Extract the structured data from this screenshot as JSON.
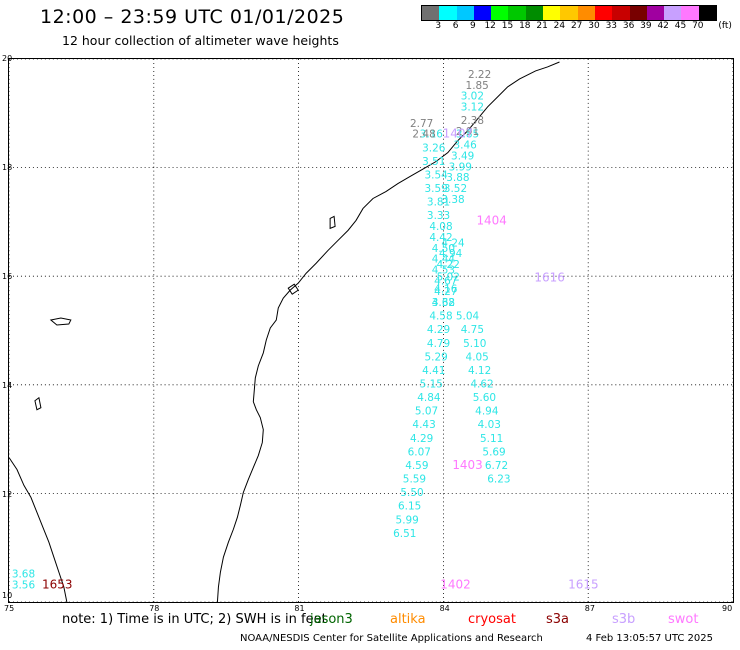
{
  "header": {
    "title": "12:00 – 23:59 UTC 01/01/2025",
    "subtitle": "12 hour collection of altimeter wave heights"
  },
  "legend": {
    "unit": "(ft)",
    "colors": [
      "#707070",
      "#00ffff",
      "#00c8ff",
      "#0000ff",
      "#00ff00",
      "#00c800",
      "#008c00",
      "#ffff00",
      "#ffc800",
      "#ff8c00",
      "#ff0000",
      "#c80000",
      "#780000",
      "#a000a0",
      "#c8a0ff",
      "#ff78ff",
      "#000000"
    ],
    "labels": [
      "3",
      "6",
      "9",
      "12",
      "15",
      "18",
      "21",
      "24",
      "27",
      "30",
      "33",
      "36",
      "39",
      "42",
      "45",
      "70"
    ]
  },
  "axes": {
    "x_ticks": [
      "75",
      "78",
      "81",
      "84",
      "87",
      "90"
    ],
    "y_ticks": [
      "10",
      "12",
      "14",
      "16",
      "18",
      "20"
    ]
  },
  "chart_data": {
    "type": "scatter",
    "x_range": [
      75,
      90
    ],
    "y_range": [
      10,
      20
    ],
    "tracks": [
      {
        "color": "#2ee6e6",
        "points": [
          {
            "x": 84.6,
            "y": 19.25,
            "v": "3.02"
          },
          {
            "x": 84.6,
            "y": 19.05,
            "v": "3.12"
          },
          {
            "x": 84.5,
            "y": 18.55,
            "v": "3.85"
          },
          {
            "x": 84.45,
            "y": 18.35,
            "v": "3.46"
          },
          {
            "x": 84.4,
            "y": 18.15,
            "v": "3.49"
          },
          {
            "x": 84.35,
            "y": 17.95,
            "v": "3.99"
          },
          {
            "x": 84.3,
            "y": 17.75,
            "v": "3.88"
          },
          {
            "x": 84.25,
            "y": 17.55,
            "v": "3.52"
          },
          {
            "x": 84.2,
            "y": 17.35,
            "v": "3.38"
          },
          {
            "x": 84.2,
            "y": 16.55,
            "v": "4.24"
          },
          {
            "x": 84.15,
            "y": 16.35,
            "v": "4.94"
          },
          {
            "x": 84.1,
            "y": 16.15,
            "v": "4.22"
          },
          {
            "x": 84.1,
            "y": 15.92,
            "v": "5.02"
          },
          {
            "x": 84.05,
            "y": 15.7,
            "v": "4.16"
          },
          {
            "x": 84.0,
            "y": 15.45,
            "v": "3.68"
          },
          {
            "x": 84.5,
            "y": 15.2,
            "v": "5.04"
          },
          {
            "x": 84.6,
            "y": 14.95,
            "v": "4.75"
          },
          {
            "x": 84.65,
            "y": 14.7,
            "v": "5.10"
          },
          {
            "x": 84.7,
            "y": 14.45,
            "v": "4.05"
          },
          {
            "x": 84.75,
            "y": 14.2,
            "v": "4.12"
          },
          {
            "x": 84.8,
            "y": 13.95,
            "v": "4.62"
          },
          {
            "x": 84.85,
            "y": 13.7,
            "v": "5.60"
          },
          {
            "x": 84.9,
            "y": 13.45,
            "v": "4.94"
          },
          {
            "x": 84.95,
            "y": 13.2,
            "v": "4.03"
          },
          {
            "x": 85.0,
            "y": 12.95,
            "v": "5.11"
          },
          {
            "x": 85.05,
            "y": 12.7,
            "v": "5.69"
          },
          {
            "x": 85.1,
            "y": 12.45,
            "v": "6.72"
          },
          {
            "x": 85.15,
            "y": 12.2,
            "v": "6.23"
          }
        ]
      },
      {
        "color": "#2ee6e6",
        "points": [
          {
            "x": 83.75,
            "y": 18.55,
            "v": "3.16"
          },
          {
            "x": 83.8,
            "y": 18.3,
            "v": "3.26"
          },
          {
            "x": 83.8,
            "y": 18.05,
            "v": "3.51"
          },
          {
            "x": 83.85,
            "y": 17.8,
            "v": "3.54"
          },
          {
            "x": 83.85,
            "y": 17.55,
            "v": "3.59"
          },
          {
            "x": 83.9,
            "y": 17.3,
            "v": "3.81"
          },
          {
            "x": 83.9,
            "y": 17.05,
            "v": "3.33"
          },
          {
            "x": 83.95,
            "y": 16.85,
            "v": "4.08"
          },
          {
            "x": 83.95,
            "y": 16.65,
            "v": "4.42"
          },
          {
            "x": 84.0,
            "y": 16.45,
            "v": "4.50"
          },
          {
            "x": 84.0,
            "y": 16.25,
            "v": "4.44"
          },
          {
            "x": 84.0,
            "y": 16.05,
            "v": "4.53"
          },
          {
            "x": 84.05,
            "y": 15.85,
            "v": "4.67"
          },
          {
            "x": 84.05,
            "y": 15.65,
            "v": "4.27"
          },
          {
            "x": 84.0,
            "y": 15.45,
            "v": "4.32"
          },
          {
            "x": 83.95,
            "y": 15.2,
            "v": "4.58"
          },
          {
            "x": 83.9,
            "y": 14.95,
            "v": "4.29"
          },
          {
            "x": 83.9,
            "y": 14.7,
            "v": "4.79"
          },
          {
            "x": 83.85,
            "y": 14.45,
            "v": "5.29"
          },
          {
            "x": 83.8,
            "y": 14.2,
            "v": "4.41"
          },
          {
            "x": 83.75,
            "y": 13.95,
            "v": "5.15"
          },
          {
            "x": 83.7,
            "y": 13.7,
            "v": "4.84"
          },
          {
            "x": 83.65,
            "y": 13.45,
            "v": "5.07"
          },
          {
            "x": 83.6,
            "y": 13.2,
            "v": "4.43"
          },
          {
            "x": 83.55,
            "y": 12.95,
            "v": "4.29"
          },
          {
            "x": 83.5,
            "y": 12.7,
            "v": "6.07"
          },
          {
            "x": 83.45,
            "y": 12.45,
            "v": "4.59"
          },
          {
            "x": 83.4,
            "y": 12.2,
            "v": "5.59"
          },
          {
            "x": 83.35,
            "y": 11.95,
            "v": "5.50"
          },
          {
            "x": 83.3,
            "y": 11.7,
            "v": "6.15"
          },
          {
            "x": 83.25,
            "y": 11.45,
            "v": "5.99"
          },
          {
            "x": 83.2,
            "y": 11.2,
            "v": "6.51"
          }
        ]
      },
      {
        "color": "#808080",
        "points": [
          {
            "x": 84.75,
            "y": 19.65,
            "v": "2.22"
          },
          {
            "x": 84.7,
            "y": 19.45,
            "v": "1.85"
          },
          {
            "x": 84.6,
            "y": 18.8,
            "v": "2.38"
          },
          {
            "x": 84.5,
            "y": 18.6,
            "v": "2.91"
          },
          {
            "x": 83.55,
            "y": 18.75,
            "v": "2.77"
          },
          {
            "x": 83.6,
            "y": 18.55,
            "v": "2.48"
          }
        ]
      },
      {
        "color": "#2ee6e6",
        "points": [
          {
            "x": 75.3,
            "y": 10.45,
            "v": "3.68"
          },
          {
            "x": 75.3,
            "y": 10.25,
            "v": "3.56"
          }
        ]
      },
      {
        "color": "#8b0000",
        "points": [
          {
            "x": 76.0,
            "y": 10.25,
            "v": "1653"
          }
        ]
      },
      {
        "color": "#c8a0ff",
        "points": [
          {
            "x": 84.3,
            "y": 18.55,
            "v": "1407"
          },
          {
            "x": 86.2,
            "y": 15.9,
            "v": "1616"
          },
          {
            "x": 86.9,
            "y": 10.25,
            "v": "1615"
          }
        ]
      },
      {
        "color": "#ff78ff",
        "points": [
          {
            "x": 85.0,
            "y": 16.95,
            "v": "1404"
          },
          {
            "x": 84.5,
            "y": 12.45,
            "v": "1403"
          },
          {
            "x": 84.25,
            "y": 10.25,
            "v": "1402"
          }
        ]
      }
    ]
  },
  "footer": {
    "note": "note: 1) Time is in UTC; 2) SWH is in feet",
    "satellites": [
      {
        "name": "jason3",
        "color": "#006400"
      },
      {
        "name": "altika",
        "color": "#ff8c00"
      },
      {
        "name": "cryosat",
        "color": "#ff0000"
      },
      {
        "name": "s3a",
        "color": "#8b0000"
      },
      {
        "name": "s3b",
        "color": "#c8a0ff"
      },
      {
        "name": "swot",
        "color": "#ff78ff"
      }
    ],
    "credit": "NOAA/NESDIS Center for Satellite Applications and Research",
    "timestamp": "4 Feb 13:05:57 UTC 2025"
  }
}
